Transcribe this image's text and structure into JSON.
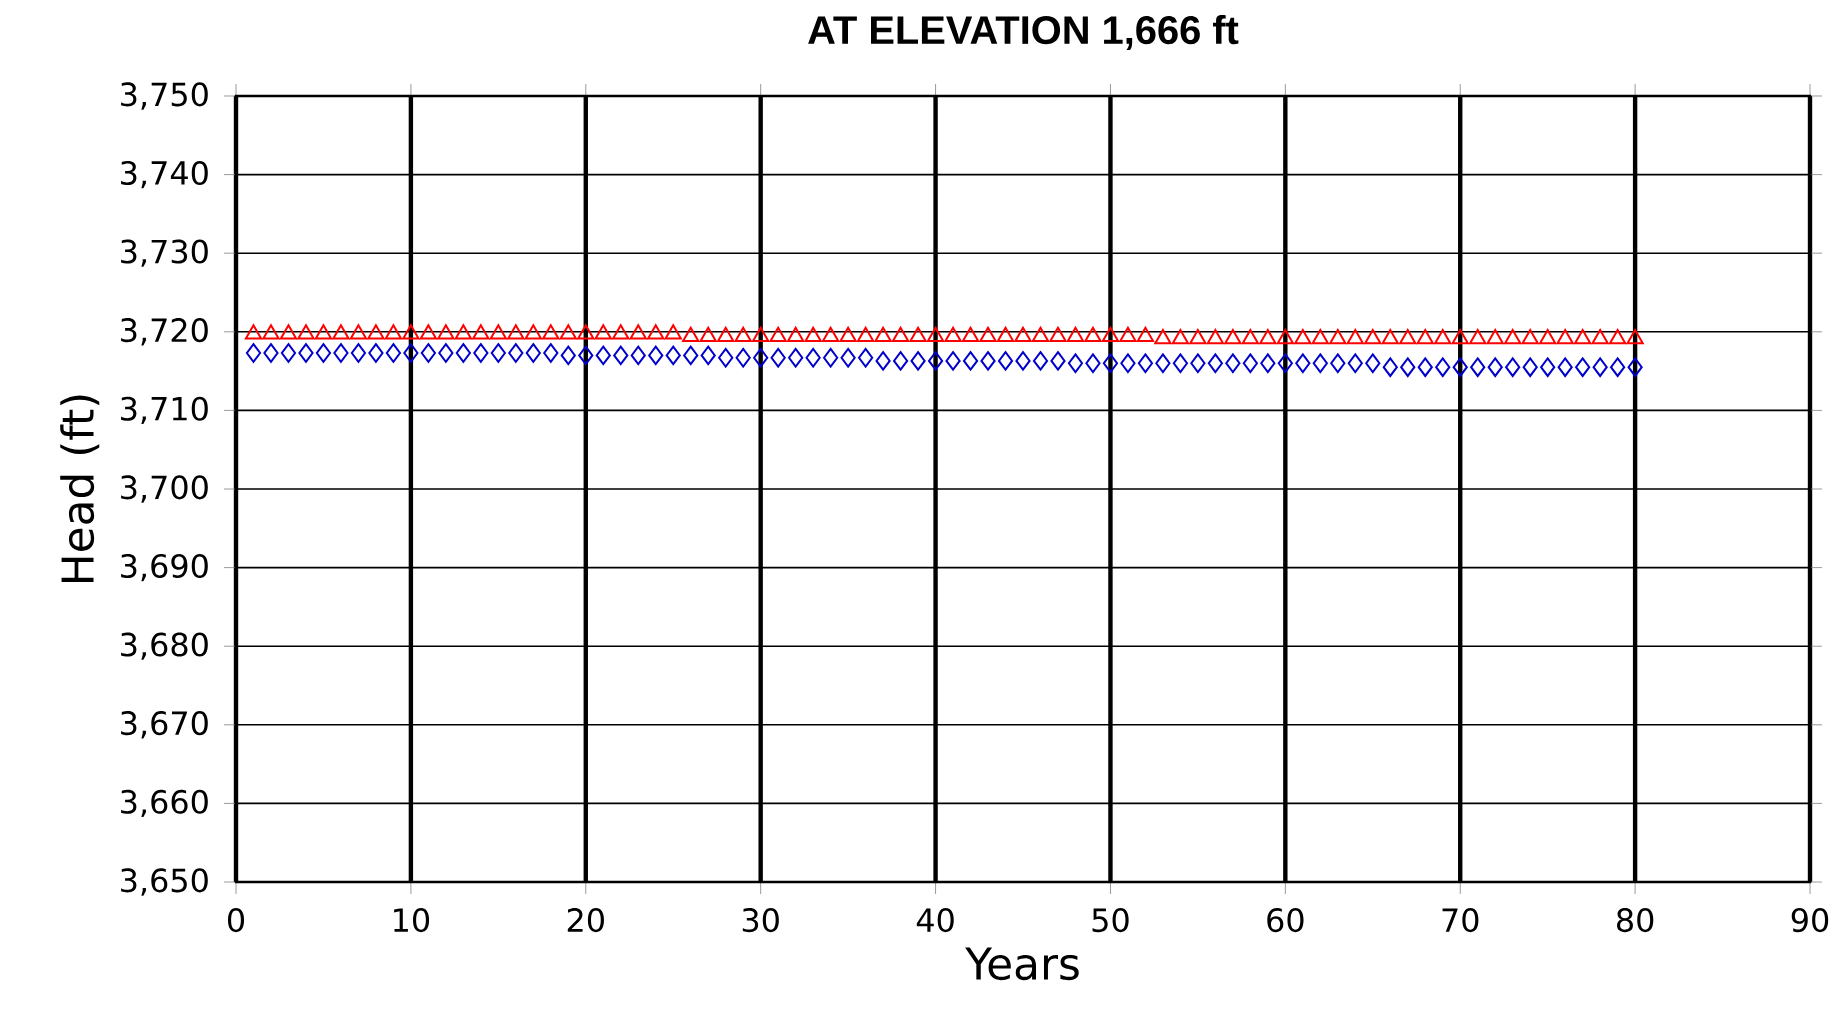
{
  "chart_data": {
    "type": "scatter",
    "title": "AT ELEVATION 1,666 ft",
    "xlabel": "Years",
    "ylabel": "Head  (ft)",
    "x": [
      1,
      2,
      3,
      4,
      5,
      6,
      7,
      8,
      9,
      10,
      11,
      12,
      13,
      14,
      15,
      16,
      17,
      18,
      19,
      20,
      21,
      22,
      23,
      24,
      25,
      26,
      27,
      28,
      29,
      30,
      31,
      32,
      33,
      34,
      35,
      36,
      37,
      38,
      39,
      40,
      41,
      42,
      43,
      44,
      45,
      46,
      47,
      48,
      49,
      50,
      51,
      52,
      53,
      54,
      55,
      56,
      57,
      58,
      59,
      60,
      61,
      62,
      63,
      64,
      65,
      66,
      67,
      68,
      69,
      70,
      71,
      72,
      73,
      74,
      75,
      76,
      77,
      78,
      79,
      80
    ],
    "series": [
      {
        "color": "#ff0000",
        "marker": "triangle",
        "values": [
          3719.7,
          3719.7,
          3719.7,
          3719.7,
          3719.7,
          3719.7,
          3719.7,
          3719.7,
          3719.7,
          3719.7,
          3719.7,
          3719.7,
          3719.7,
          3719.7,
          3719.7,
          3719.7,
          3719.7,
          3719.7,
          3719.7,
          3719.7,
          3719.7,
          3719.7,
          3719.7,
          3719.7,
          3719.7,
          3719.4,
          3719.4,
          3719.4,
          3719.4,
          3719.4,
          3719.4,
          3719.4,
          3719.4,
          3719.4,
          3719.4,
          3719.4,
          3719.4,
          3719.4,
          3719.4,
          3719.4,
          3719.4,
          3719.4,
          3719.4,
          3719.4,
          3719.4,
          3719.4,
          3719.4,
          3719.4,
          3719.4,
          3719.4,
          3719.4,
          3719.4,
          3719.1,
          3719.1,
          3719.1,
          3719.1,
          3719.1,
          3719.1,
          3719.1,
          3719.1,
          3719.1,
          3719.1,
          3719.1,
          3719.1,
          3719.1,
          3719.1,
          3719.1,
          3719.1,
          3719.1,
          3719.1,
          3719.1,
          3719.1,
          3719.1,
          3719.1,
          3719.1,
          3719.1,
          3719.1,
          3719.1,
          3719.1,
          3719.1
        ]
      },
      {
        "color": "#0000cc",
        "marker": "diamond",
        "values": [
          3717.3,
          3717.3,
          3717.3,
          3717.3,
          3717.3,
          3717.3,
          3717.3,
          3717.3,
          3717.3,
          3717.3,
          3717.3,
          3717.3,
          3717.3,
          3717.3,
          3717.3,
          3717.3,
          3717.3,
          3717.3,
          3717.0,
          3717.0,
          3717.0,
          3717.0,
          3717.0,
          3717.0,
          3717.0,
          3717.0,
          3717.0,
          3716.7,
          3716.7,
          3716.7,
          3716.7,
          3716.7,
          3716.7,
          3716.7,
          3716.7,
          3716.7,
          3716.3,
          3716.3,
          3716.3,
          3716.3,
          3716.3,
          3716.3,
          3716.3,
          3716.3,
          3716.3,
          3716.3,
          3716.3,
          3716.0,
          3716.0,
          3716.0,
          3716.0,
          3716.0,
          3716.0,
          3716.0,
          3716.0,
          3716.0,
          3716.0,
          3716.0,
          3716.0,
          3716.0,
          3716.0,
          3716.0,
          3716.0,
          3716.0,
          3716.0,
          3715.5,
          3715.5,
          3715.5,
          3715.5,
          3715.5,
          3715.5,
          3715.5,
          3715.5,
          3715.5,
          3715.5,
          3715.5,
          3715.5,
          3715.5,
          3715.5,
          3715.5
        ]
      }
    ],
    "xlim": [
      0,
      90
    ],
    "xticks": [
      0,
      10,
      20,
      30,
      40,
      50,
      60,
      70,
      80,
      90
    ],
    "ylim": [
      3650,
      3750
    ],
    "yticks": [
      {
        "value": 3650,
        "label": "3,650"
      },
      {
        "value": 3660,
        "label": "3,660"
      },
      {
        "value": 3670,
        "label": "3,670"
      },
      {
        "value": 3680,
        "label": "3,680"
      },
      {
        "value": 3690,
        "label": "3,690"
      },
      {
        "value": 3700,
        "label": "3,700"
      },
      {
        "value": 3710,
        "label": "3,710"
      },
      {
        "value": 3720,
        "label": "3,720"
      },
      {
        "value": 3730,
        "label": "3,730"
      },
      {
        "value": 3740,
        "label": "3,740"
      },
      {
        "value": 3750,
        "label": "3,750"
      }
    ],
    "grid": true
  }
}
